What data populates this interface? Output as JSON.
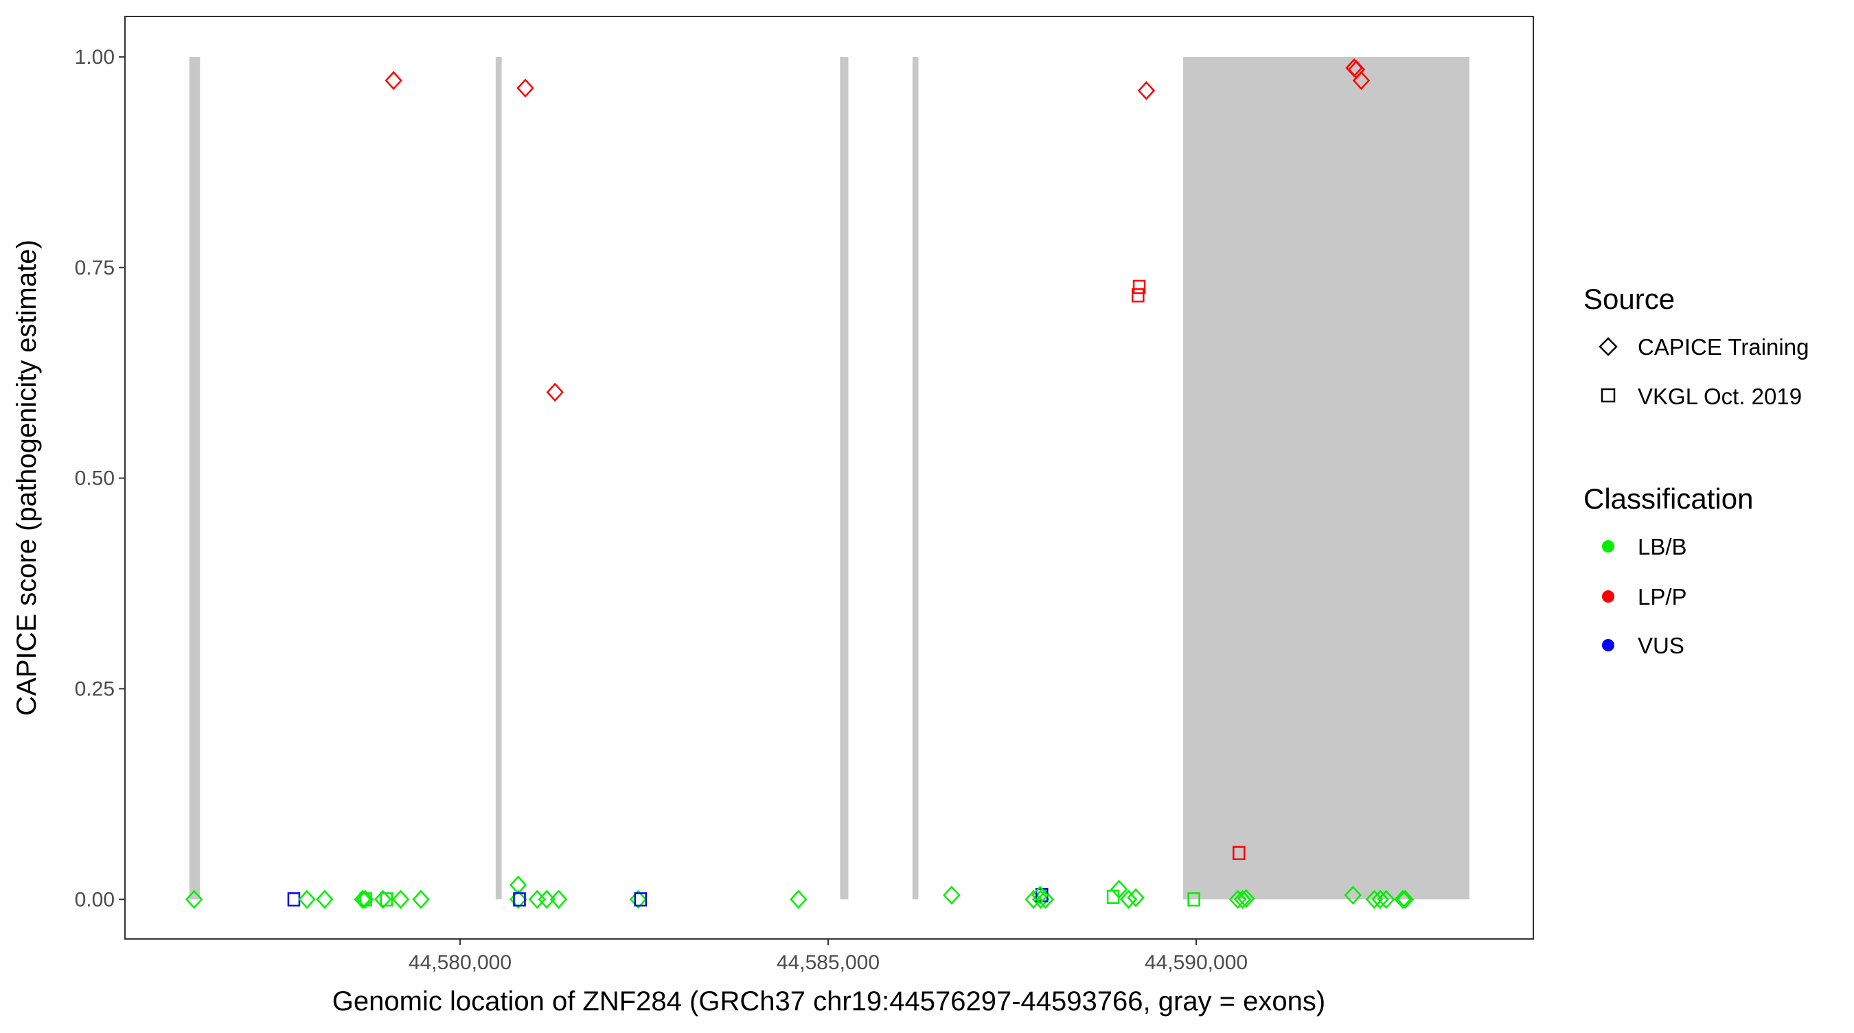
{
  "chart_data": {
    "type": "scatter",
    "xlabel": "Genomic location of ZNF284 (GRCh37 chr19:44576297-44593766, gray = exons)",
    "ylabel": "CAPICE score (pathogenicity estimate)",
    "xlim": [
      44575448,
      44594580
    ],
    "ylim": [
      -0.047,
      1.048
    ],
    "x_ticks": [
      44580000,
      44585000,
      44590000
    ],
    "x_tick_labels": [
      "44,580,000",
      "44,585,000",
      "44,590,000"
    ],
    "y_ticks": [
      0,
      0.25,
      0.5,
      0.75,
      1.0
    ],
    "y_tick_labels": [
      "0.00",
      "0.25",
      "0.50",
      "0.75",
      "1.00"
    ],
    "grid": false,
    "exons": [
      [
        44576322,
        44576468
      ],
      [
        44580484,
        44580565
      ],
      [
        44585162,
        44585275
      ],
      [
        44586146,
        44586226
      ],
      [
        44589823,
        44593711
      ]
    ],
    "exon_color": "#c8c8c8",
    "legend_position": "right",
    "legend": {
      "source_title": "Source",
      "sources": [
        {
          "key": "capice",
          "label": "CAPICE Training",
          "shape": "diamond"
        },
        {
          "key": "vkgl",
          "label": "VKGL Oct. 2019",
          "shape": "square"
        }
      ],
      "class_title": "Classification",
      "classes": [
        {
          "key": "lbb",
          "label": "LB/B",
          "color": "#00ee00"
        },
        {
          "key": "lpp",
          "label": "LP/P",
          "color": "#ff0000"
        },
        {
          "key": "vus",
          "label": "VUS",
          "color": "#0000ff"
        }
      ]
    },
    "points": [
      {
        "x": 44576387,
        "y": 0.0,
        "class": "lbb",
        "source": "capice"
      },
      {
        "x": 44577742,
        "y": 0.0,
        "class": "vus",
        "source": "vkgl"
      },
      {
        "x": 44577919,
        "y": 0.0,
        "class": "lbb",
        "source": "capice"
      },
      {
        "x": 44578161,
        "y": 0.0,
        "class": "lbb",
        "source": "capice"
      },
      {
        "x": 44578677,
        "y": 0.0,
        "class": "lbb",
        "source": "capice"
      },
      {
        "x": 44578710,
        "y": 0.0,
        "class": "lbb",
        "source": "capice"
      },
      {
        "x": 44578720,
        "y": 0.0,
        "class": "lbb",
        "source": "vkgl"
      },
      {
        "x": 44578952,
        "y": 0.0,
        "class": "lbb",
        "source": "capice"
      },
      {
        "x": 44579000,
        "y": 0.0,
        "class": "lbb",
        "source": "vkgl"
      },
      {
        "x": 44579193,
        "y": 0.0,
        "class": "lbb",
        "source": "capice"
      },
      {
        "x": 44579468,
        "y": 0.0,
        "class": "lbb",
        "source": "capice"
      },
      {
        "x": 44579097,
        "y": 0.972,
        "class": "lpp",
        "source": "capice"
      },
      {
        "x": 44580790,
        "y": 0.017,
        "class": "lbb",
        "source": "capice"
      },
      {
        "x": 44580790,
        "y": 0.0,
        "class": "lbb",
        "source": "capice"
      },
      {
        "x": 44580807,
        "y": 0.0,
        "class": "vus",
        "source": "vkgl"
      },
      {
        "x": 44580887,
        "y": 0.963,
        "class": "lpp",
        "source": "capice"
      },
      {
        "x": 44581048,
        "y": 0.0,
        "class": "lbb",
        "source": "capice"
      },
      {
        "x": 44581177,
        "y": 0.0,
        "class": "lbb",
        "source": "capice"
      },
      {
        "x": 44581290,
        "y": 0.602,
        "class": "lpp",
        "source": "capice"
      },
      {
        "x": 44581339,
        "y": 0.0,
        "class": "lbb",
        "source": "capice"
      },
      {
        "x": 44582420,
        "y": 0.0,
        "class": "lbb",
        "source": "capice"
      },
      {
        "x": 44582452,
        "y": 0.0,
        "class": "vus",
        "source": "vkgl"
      },
      {
        "x": 44584597,
        "y": 0.0,
        "class": "lbb",
        "source": "capice"
      },
      {
        "x": 44586678,
        "y": 0.005,
        "class": "lbb",
        "source": "capice"
      },
      {
        "x": 44587791,
        "y": 0.0,
        "class": "lbb",
        "source": "capice"
      },
      {
        "x": 44587888,
        "y": 0.0,
        "class": "lbb",
        "source": "capice"
      },
      {
        "x": 44587952,
        "y": 0.0,
        "class": "lbb",
        "source": "capice"
      },
      {
        "x": 44587904,
        "y": 0.005,
        "class": "vus",
        "source": "vkgl"
      },
      {
        "x": 44587880,
        "y": 0.005,
        "class": "lbb",
        "source": "capice"
      },
      {
        "x": 44588872,
        "y": 0.003,
        "class": "lbb",
        "source": "vkgl"
      },
      {
        "x": 44588952,
        "y": 0.012,
        "class": "lbb",
        "source": "capice"
      },
      {
        "x": 44589081,
        "y": 0.0,
        "class": "lbb",
        "source": "capice"
      },
      {
        "x": 44589180,
        "y": 0.002,
        "class": "lbb",
        "source": "capice"
      },
      {
        "x": 44589210,
        "y": 0.717,
        "class": "lpp",
        "source": "vkgl"
      },
      {
        "x": 44589226,
        "y": 0.727,
        "class": "lpp",
        "source": "vkgl"
      },
      {
        "x": 44589323,
        "y": 0.96,
        "class": "lpp",
        "source": "capice"
      },
      {
        "x": 44589968,
        "y": 0.0,
        "class": "lbb",
        "source": "vkgl"
      },
      {
        "x": 44590565,
        "y": 0.0,
        "class": "lbb",
        "source": "capice"
      },
      {
        "x": 44590581,
        "y": 0.055,
        "class": "lpp",
        "source": "vkgl"
      },
      {
        "x": 44590630,
        "y": 0.0,
        "class": "lbb",
        "source": "capice"
      },
      {
        "x": 44590678,
        "y": 0.001,
        "class": "lbb",
        "source": "capice"
      },
      {
        "x": 44592130,
        "y": 0.005,
        "class": "lbb",
        "source": "capice"
      },
      {
        "x": 44592146,
        "y": 0.987,
        "class": "lpp",
        "source": "capice"
      },
      {
        "x": 44592178,
        "y": 0.985,
        "class": "lpp",
        "source": "capice"
      },
      {
        "x": 44592243,
        "y": 0.972,
        "class": "lpp",
        "source": "capice"
      },
      {
        "x": 44592420,
        "y": 0.0,
        "class": "lbb",
        "source": "capice"
      },
      {
        "x": 44592501,
        "y": 0.0,
        "class": "lbb",
        "source": "capice"
      },
      {
        "x": 44592581,
        "y": 0.0,
        "class": "lbb",
        "source": "capice"
      },
      {
        "x": 44592807,
        "y": 0.0,
        "class": "lbb",
        "source": "capice"
      },
      {
        "x": 44592839,
        "y": 0.0,
        "class": "lbb",
        "source": "capice"
      }
    ]
  }
}
